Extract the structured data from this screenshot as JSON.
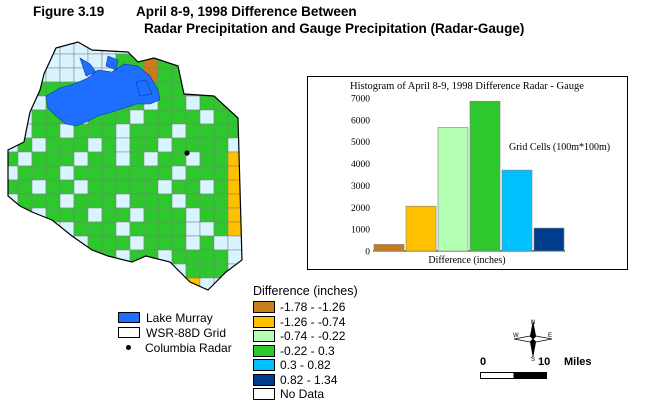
{
  "title": {
    "figure": "Figure 3.19",
    "line1": "April 8-9, 1998 Difference Between",
    "line2": "Radar Precipitation and Gauge Precipitation (Radar-Gauge)"
  },
  "histogram": {
    "title": "Histogram of April 8-9, 1998 Difference Radar - Gauge",
    "ylabel": "Grid Cells (100m*100m)",
    "xlabel": "Difference (inches)",
    "chart_data": {
      "type": "bar",
      "categories": [
        "-1.78 - -1.26",
        "-1.26 - -0.74",
        "-0.74 - -0.22",
        "-0.22 - 0.3",
        "0.3 - 0.82",
        "0.82 - 1.34"
      ],
      "values": [
        300,
        2050,
        5650,
        6850,
        3700,
        1050
      ],
      "ylim": [
        0,
        7000
      ],
      "yticks": [
        0,
        1000,
        2000,
        3000,
        4000,
        5000,
        6000,
        7000
      ],
      "colors": [
        "#c87c1a",
        "#ffc000",
        "#b3ffb3",
        "#2ec72e",
        "#00c0ff",
        "#003c8c"
      ]
    }
  },
  "legend": {
    "lake": "Lake Murray",
    "grid": "WSR-88D Grid",
    "radar": "Columbia Radar"
  },
  "difference_legend": {
    "header": "Difference (inches)",
    "items": [
      {
        "label": "-1.78 - -1.26",
        "color": "#c87c1a"
      },
      {
        "label": "-1.26 - -0.74",
        "color": "#ffc000"
      },
      {
        "label": "-0.74 - -0.22",
        "color": "#b3ffb3"
      },
      {
        "label": "-0.22 - 0.3",
        "color": "#2ec72e"
      },
      {
        "label": "0.3 - 0.82",
        "color": "#00c0ff"
      },
      {
        "label": "0.82 - 1.34",
        "color": "#003c8c"
      },
      {
        "label": "No Data",
        "color": "#ffffff"
      }
    ]
  },
  "compass": {
    "n": "N",
    "s": "S",
    "e": "E",
    "w": "W"
  },
  "scale": {
    "zero": "0",
    "ten": "10",
    "unit": "Miles"
  },
  "colors": {
    "lake": "#1e6eff",
    "radar_dot": "#000000",
    "grid_line": "#7f7f7f"
  }
}
